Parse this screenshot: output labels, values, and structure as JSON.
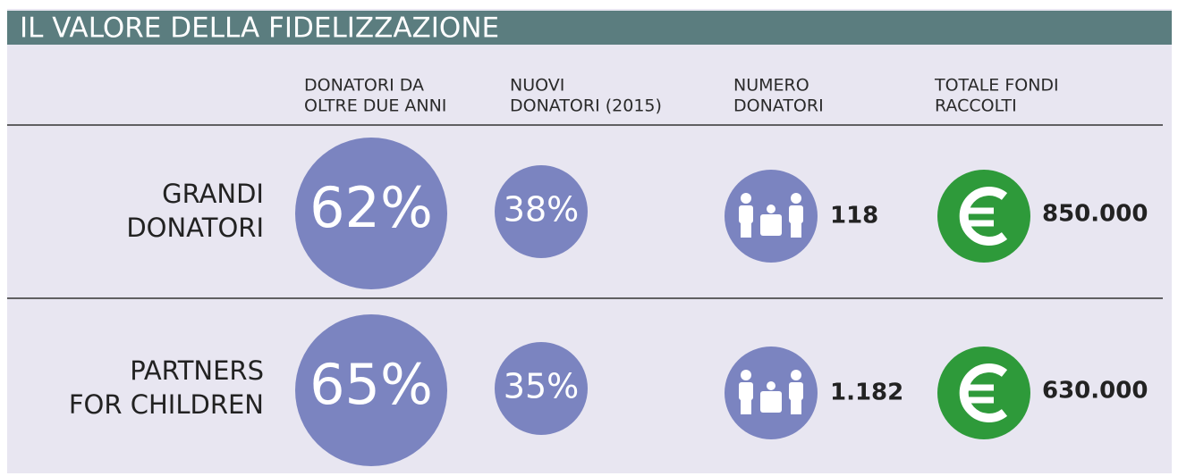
{
  "title": "IL VALORE DELLA FIDELIZZAZIONE",
  "headers": [
    [
      "DONATORI DA",
      "OLTRE DUE ANNI"
    ],
    [
      "NUOVI",
      "DONATORI (2015)"
    ],
    [
      "NUMERO",
      "DONATORI"
    ],
    [
      "TOTALE FONDI",
      "RACCOLTI"
    ]
  ],
  "rows": [
    {
      "label": [
        "GRANDI",
        "DONATORI"
      ],
      "loyal": "62%",
      "new": "38%",
      "donors": "118",
      "funds": "850.000"
    },
    {
      "label": [
        "PARTNERS",
        "FOR CHILDREN"
      ],
      "loyal": "65%",
      "new": "35%",
      "donors": "1.182",
      "funds": "630.000"
    }
  ]
}
